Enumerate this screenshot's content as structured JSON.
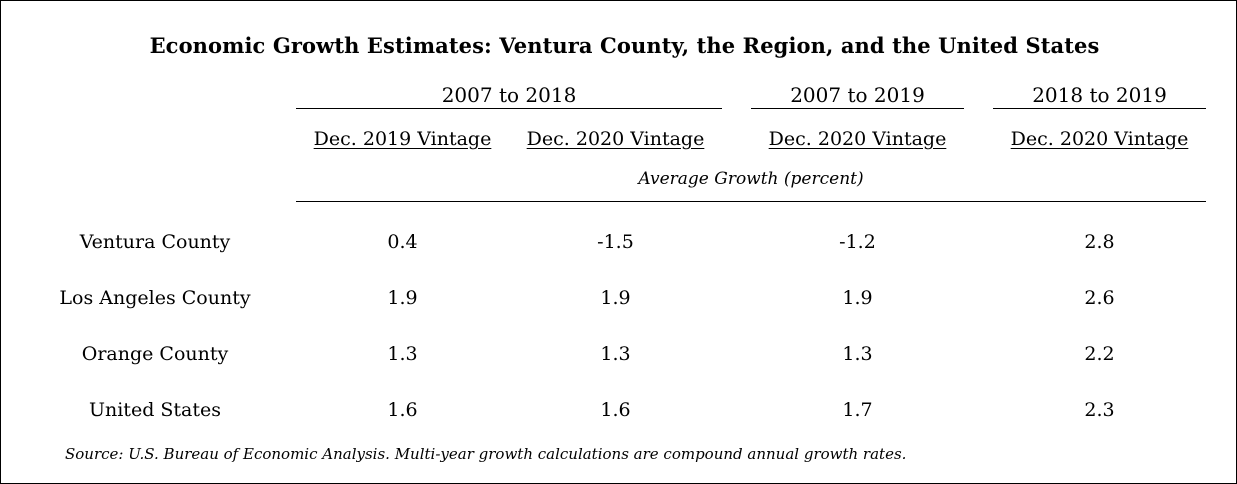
{
  "title": "Economic Growth Estimates: Ventura County, the Region, and the United States",
  "periods": [
    "2007 to 2018",
    "2007 to 2019",
    "2018 to 2019"
  ],
  "vintages": [
    "Dec. 2019 Vintage",
    "Dec. 2020 Vintage",
    "Dec. 2020 Vintage",
    "Dec. 2020 Vintage"
  ],
  "unit_label": "Average Growth (percent)",
  "rows": [
    {
      "label": "Ventura County",
      "values": [
        "0.4",
        "-1.5",
        "-1.2",
        "2.8"
      ]
    },
    {
      "label": "Los Angeles County",
      "values": [
        "1.9",
        "1.9",
        "1.9",
        "2.6"
      ]
    },
    {
      "label": "Orange County",
      "values": [
        "1.3",
        "1.3",
        "1.3",
        "2.2"
      ]
    },
    {
      "label": "United States",
      "values": [
        "1.6",
        "1.6",
        "1.7",
        "2.3"
      ]
    }
  ],
  "source": "Source: U.S. Bureau of Economic Analysis. Multi-year growth calculations are compound annual growth rates."
}
